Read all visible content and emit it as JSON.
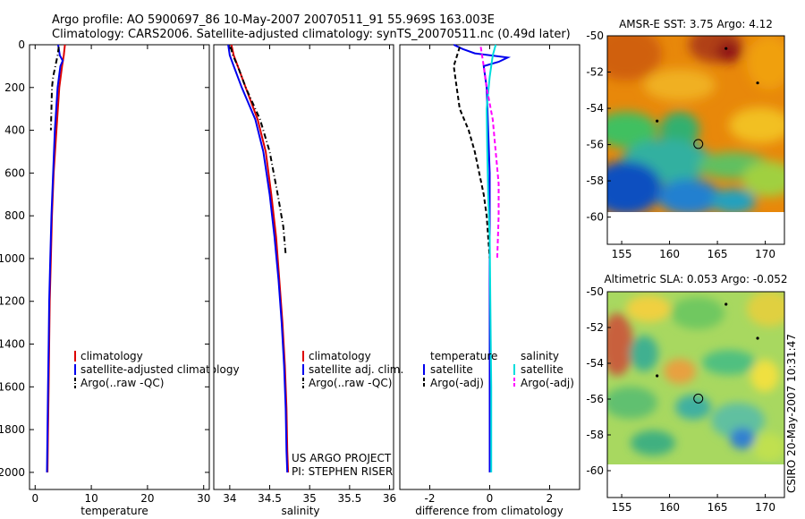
{
  "title_line1": "Argo profile: AO 5900697_86 10-May-2007 20070511_91 55.969S 163.003E",
  "title_line2": "Climatology: CARS2006. Satellite-adjusted climatology: synTS_20070511.nc (0.49d later)",
  "side_label": "CSIRO 20-May-2007 10:31:47",
  "colors": {
    "red": "#dd0000",
    "blue": "#0000ee",
    "black": "#000000",
    "cyan": "#00dddd",
    "magenta": "#ff00ff",
    "map_bg": "#ffffff"
  },
  "chart_data": [
    {
      "type": "line",
      "id": "temperature",
      "xlabel": "temperature",
      "ylabel": "",
      "xlim": [
        -1,
        31
      ],
      "ylim": [
        2080,
        0
      ],
      "xticks": [
        0,
        10,
        20,
        30
      ],
      "yticks": [
        0,
        200,
        400,
        600,
        800,
        1000,
        1200,
        1400,
        1600,
        1800,
        2000
      ],
      "legend": {
        "position": "center-left",
        "entries": [
          {
            "label": "climatology",
            "color": "#dd0000",
            "style": "solid"
          },
          {
            "label": "satellite-adjusted climatology",
            "color": "#0000ee",
            "style": "solid"
          },
          {
            "label": "Argo(..raw -QC)",
            "color": "#000000",
            "style": "dashdot"
          }
        ]
      },
      "series": [
        {
          "name": "climatology",
          "color": "#dd0000",
          "style": "solid",
          "points": [
            [
              5.3,
              0
            ],
            [
              5.1,
              50
            ],
            [
              4.8,
              100
            ],
            [
              4.3,
              200
            ],
            [
              3.8,
              400
            ],
            [
              3.3,
              600
            ],
            [
              3.0,
              800
            ],
            [
              2.8,
              1000
            ],
            [
              2.6,
              1200
            ],
            [
              2.5,
              1400
            ],
            [
              2.4,
              1600
            ],
            [
              2.3,
              1800
            ],
            [
              2.2,
              2000
            ]
          ]
        },
        {
          "name": "satellite-adjusted climatology",
          "color": "#0000ee",
          "style": "solid",
          "points": [
            [
              4.1,
              0
            ],
            [
              4.4,
              50
            ],
            [
              4.9,
              75
            ],
            [
              4.5,
              100
            ],
            [
              4.0,
              200
            ],
            [
              3.5,
              400
            ],
            [
              3.2,
              600
            ],
            [
              2.9,
              800
            ],
            [
              2.7,
              1000
            ],
            [
              2.5,
              1200
            ],
            [
              2.4,
              1400
            ],
            [
              2.3,
              1600
            ],
            [
              2.2,
              1800
            ],
            [
              2.1,
              2000
            ]
          ]
        },
        {
          "name": "Argo(..raw -QC)",
          "color": "#000000",
          "style": "dashdot",
          "points": [
            [
              4.2,
              10
            ],
            [
              4.0,
              50
            ],
            [
              3.6,
              100
            ],
            [
              3.2,
              150
            ],
            [
              3.0,
              200
            ],
            [
              2.9,
              300
            ],
            [
              2.8,
              400
            ]
          ]
        }
      ]
    },
    {
      "type": "line",
      "id": "salinity",
      "xlabel": "salinity",
      "ylabel": "",
      "xlim": [
        33.8,
        36.05
      ],
      "ylim": [
        2080,
        0
      ],
      "xticks": [
        34,
        34.5,
        35,
        35.5,
        36
      ],
      "yticks": [],
      "legend": {
        "position": "center-left",
        "entries": [
          {
            "label": "climatology",
            "color": "#dd0000",
            "style": "solid"
          },
          {
            "label": "satellite adj. clim.",
            "color": "#0000ee",
            "style": "solid"
          },
          {
            "label": "Argo(..raw -QC)",
            "color": "#000000",
            "style": "dashdot"
          }
        ]
      },
      "annotations": [
        "US ARGO PROJECT",
        "PI: STEPHEN RISER"
      ],
      "series": [
        {
          "name": "climatology",
          "color": "#dd0000",
          "style": "solid",
          "points": [
            [
              34.02,
              0
            ],
            [
              34.05,
              50
            ],
            [
              34.1,
              100
            ],
            [
              34.2,
              200
            ],
            [
              34.35,
              350
            ],
            [
              34.45,
              500
            ],
            [
              34.52,
              700
            ],
            [
              34.58,
              900
            ],
            [
              34.62,
              1100
            ],
            [
              34.66,
              1300
            ],
            [
              34.69,
              1500
            ],
            [
              34.71,
              1700
            ],
            [
              34.72,
              1900
            ],
            [
              34.73,
              2000
            ]
          ]
        },
        {
          "name": "satellite adj. clim.",
          "color": "#0000ee",
          "style": "solid",
          "points": [
            [
              33.98,
              0
            ],
            [
              34.0,
              50
            ],
            [
              34.05,
              100
            ],
            [
              34.15,
              200
            ],
            [
              34.32,
              350
            ],
            [
              34.42,
              500
            ],
            [
              34.5,
              700
            ],
            [
              34.56,
              900
            ],
            [
              34.61,
              1100
            ],
            [
              34.65,
              1300
            ],
            [
              34.68,
              1500
            ],
            [
              34.7,
              1700
            ],
            [
              34.71,
              1900
            ],
            [
              34.72,
              2000
            ]
          ]
        },
        {
          "name": "Argo(..raw -QC)",
          "color": "#000000",
          "style": "dashdot",
          "points": [
            [
              34.01,
              10
            ],
            [
              34.04,
              50
            ],
            [
              34.1,
              100
            ],
            [
              34.2,
              200
            ],
            [
              34.38,
              350
            ],
            [
              34.5,
              500
            ],
            [
              34.6,
              700
            ],
            [
              34.67,
              850
            ],
            [
              34.7,
              980
            ]
          ]
        }
      ]
    },
    {
      "type": "line",
      "id": "difference",
      "xlabel": "difference from climatology",
      "ylabel": "",
      "xlim": [
        -3,
        3
      ],
      "ylim": [
        2080,
        0
      ],
      "xticks": [
        -2,
        0,
        2
      ],
      "yticks": [],
      "legend": {
        "position": "center",
        "temperature_title": "temperature",
        "salinity_title": "salinity",
        "entries": [
          {
            "label": "satellite",
            "color": "#0000ee",
            "style": "solid",
            "group": "temperature"
          },
          {
            "label": "Argo(-adj)",
            "color": "#000000",
            "style": "dashed",
            "group": "temperature"
          },
          {
            "label": "satellite",
            "color": "#00dddd",
            "style": "solid",
            "group": "salinity"
          },
          {
            "label": "Argo(-adj)",
            "color": "#ff00ff",
            "style": "dashed",
            "group": "salinity"
          }
        ]
      },
      "series": [
        {
          "name": "temperature satellite",
          "color": "#0000ee",
          "style": "solid",
          "points": [
            [
              -1.2,
              0
            ],
            [
              -0.9,
              20
            ],
            [
              -0.5,
              40
            ],
            [
              0.6,
              60
            ],
            [
              0.3,
              80
            ],
            [
              -0.2,
              100
            ],
            [
              -0.1,
              200
            ],
            [
              -0.05,
              400
            ],
            [
              0.0,
              600
            ],
            [
              0.0,
              800
            ],
            [
              0.0,
              1000
            ],
            [
              0.0,
              1500
            ],
            [
              0.0,
              2000
            ]
          ]
        },
        {
          "name": "temperature Argo(-adj)",
          "color": "#000000",
          "style": "dashed",
          "points": [
            [
              -1.0,
              10
            ],
            [
              -1.2,
              100
            ],
            [
              -1.1,
              200
            ],
            [
              -1.0,
              300
            ],
            [
              -0.7,
              400
            ],
            [
              -0.5,
              500
            ],
            [
              -0.35,
              600
            ],
            [
              -0.2,
              700
            ],
            [
              -0.1,
              800
            ],
            [
              -0.05,
              900
            ],
            [
              0.0,
              1000
            ]
          ]
        },
        {
          "name": "salinity satellite",
          "color": "#00dddd",
          "style": "solid",
          "points": [
            [
              0.2,
              0
            ],
            [
              0.1,
              50
            ],
            [
              0.0,
              150
            ],
            [
              -0.1,
              300
            ],
            [
              -0.08,
              500
            ],
            [
              -0.05,
              700
            ],
            [
              0.0,
              900
            ],
            [
              0.02,
              1200
            ],
            [
              0.05,
              1600
            ],
            [
              0.05,
              2000
            ]
          ]
        },
        {
          "name": "salinity Argo(-adj)",
          "color": "#ff00ff",
          "style": "dashed",
          "points": [
            [
              -0.3,
              10
            ],
            [
              -0.2,
              100
            ],
            [
              -0.1,
              200
            ],
            [
              0.1,
              350
            ],
            [
              0.2,
              500
            ],
            [
              0.3,
              650
            ],
            [
              0.3,
              800
            ],
            [
              0.25,
              1000
            ]
          ]
        }
      ]
    },
    {
      "type": "heatmap",
      "id": "sst_map",
      "title": "AMSR-E SST: 3.75 Argo: 4.12",
      "xlim": [
        153.5,
        172
      ],
      "ylim": [
        -61.5,
        -50
      ],
      "xticks": [
        155,
        160,
        165,
        170
      ],
      "yticks": [
        -50,
        -52,
        -54,
        -56,
        -58,
        -60
      ],
      "data_lat_min": -60,
      "profile_location": [
        163.003,
        -55.969
      ],
      "other_floats": [
        [
          165.9,
          -50.7
        ],
        [
          169.2,
          -52.6
        ],
        [
          158.7,
          -54.7
        ]
      ]
    },
    {
      "type": "heatmap",
      "id": "sla_map",
      "title": "Altimetric SLA: 0.053 Argo: -0.052",
      "xlim": [
        153.5,
        172
      ],
      "ylim": [
        -61.5,
        -50
      ],
      "xticks": [
        155,
        160,
        165,
        170
      ],
      "yticks": [
        -50,
        -52,
        -54,
        -56,
        -58,
        -60
      ],
      "data_lat_min": -60,
      "profile_location": [
        163.003,
        -55.969
      ],
      "other_floats": [
        [
          165.9,
          -50.7
        ],
        [
          169.2,
          -52.6
        ],
        [
          158.7,
          -54.7
        ]
      ]
    }
  ]
}
